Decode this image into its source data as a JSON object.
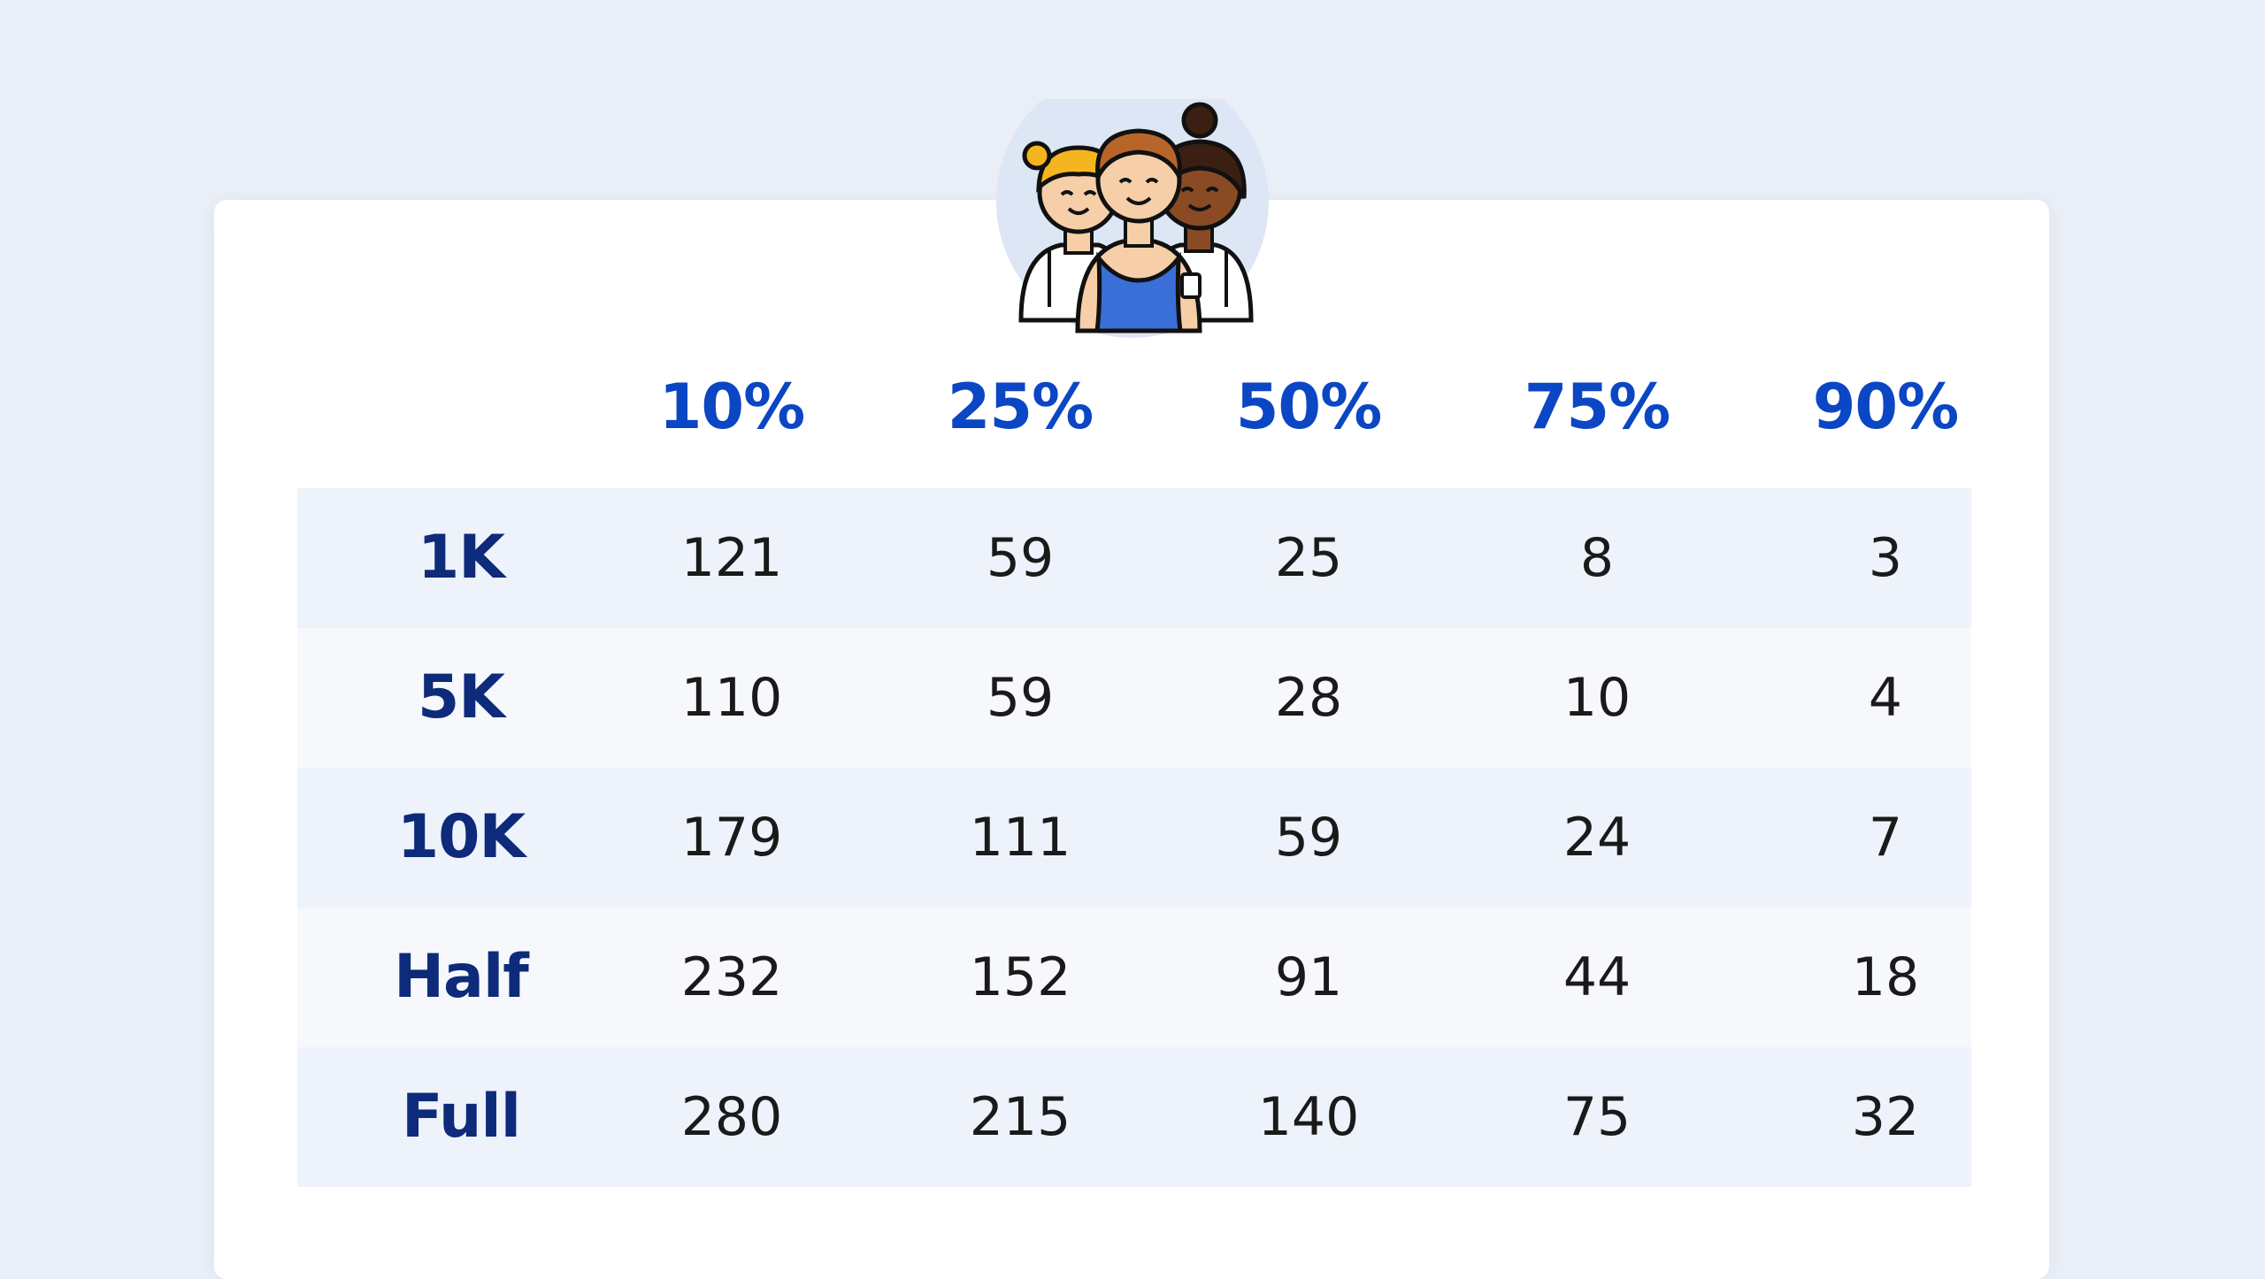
{
  "chart_data": {
    "type": "table",
    "columns": [
      "10%",
      "25%",
      "50%",
      "75%",
      "90%"
    ],
    "rows": [
      {
        "label": "1K",
        "values": [
          "121",
          "59",
          "25",
          "8",
          "3"
        ]
      },
      {
        "label": "5K",
        "values": [
          "110",
          "59",
          "28",
          "10",
          "4"
        ]
      },
      {
        "label": "10K",
        "values": [
          "179",
          "111",
          "59",
          "24",
          "7"
        ]
      },
      {
        "label": "Half",
        "values": [
          "232",
          "152",
          "91",
          "44",
          "18"
        ]
      },
      {
        "label": "Full",
        "values": [
          "280",
          "215",
          "140",
          "75",
          "32"
        ]
      }
    ]
  },
  "colors": {
    "background": "#e9eef7",
    "card": "#ffffff",
    "header_text": "#0b46c4",
    "row_label_text": "#0e2a7a",
    "row_band_a": "#eef3fb",
    "row_band_b": "#f6f8fc",
    "value_text": "#1a1a1a"
  },
  "icons": {
    "avatar": "group-of-three-runners-icon"
  }
}
